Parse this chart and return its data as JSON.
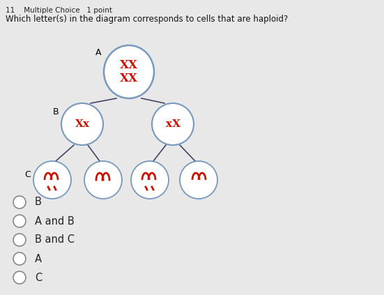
{
  "title": "11    Multiple Choice   1 point",
  "question": "Which letter(s) in the diagram corresponds to cells that are haploid?",
  "bg_color": "#e8e8e8",
  "options": [
    "B",
    "A and B",
    "B and C",
    "A",
    "C"
  ],
  "outline_color": "#7799bb",
  "chrom_color": "#cc1100",
  "label_A": "A",
  "label_B": "B",
  "label_C": "C",
  "cell_A_text": "XX\nXX",
  "cell_BL_text": "Xx",
  "cell_BR_text": "xX",
  "cell_C1_text": "),",
  "cell_C2_text": "(S",
  "cell_C3_text": "),",
  "cell_C4_text": "((",
  "line_color": "#444466"
}
